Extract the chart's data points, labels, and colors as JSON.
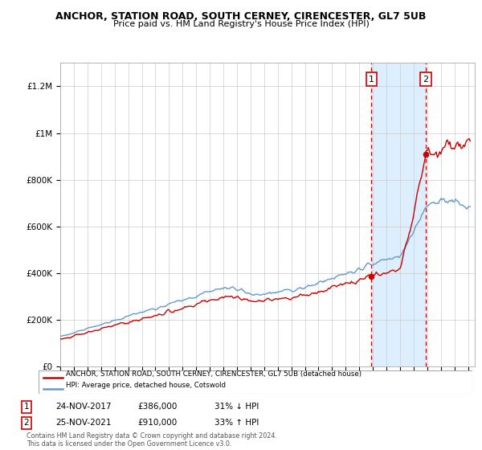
{
  "title": "ANCHOR, STATION ROAD, SOUTH CERNEY, CIRENCESTER, GL7 5UB",
  "subtitle": "Price paid vs. HM Land Registry's House Price Index (HPI)",
  "ylabel_ticks": [
    "£0",
    "£200K",
    "£400K",
    "£600K",
    "£800K",
    "£1M",
    "£1.2M"
  ],
  "ytick_values": [
    0,
    200000,
    400000,
    600000,
    800000,
    1000000,
    1200000
  ],
  "ylim": [
    0,
    1300000
  ],
  "xlim_start": 1995.0,
  "xlim_end": 2025.5,
  "transaction1": {
    "date": "24-NOV-2017",
    "year": 2017.9,
    "price": 386000,
    "pct": "31% ↓ HPI",
    "label": "1"
  },
  "transaction2": {
    "date": "25-NOV-2021",
    "year": 2021.9,
    "price": 910000,
    "pct": "33% ↑ HPI",
    "label": "2"
  },
  "red_line_color": "#cc0000",
  "blue_line_color": "#6699cc",
  "shaded_region_color": "#ddeeff",
  "dashed_line_color": "#cc0000",
  "legend_red_label": "ANCHOR, STATION ROAD, SOUTH CERNEY, CIRENCESTER, GL7 5UB (detached house)",
  "legend_blue_label": "HPI: Average price, detached house, Cotswold",
  "footer": "Contains HM Land Registry data © Crown copyright and database right 2024.\nThis data is licensed under the Open Government Licence v3.0.",
  "table_rows": [
    {
      "num": "1",
      "date": "24-NOV-2017",
      "price": "£386,000",
      "pct": "31% ↓ HPI"
    },
    {
      "num": "2",
      "date": "25-NOV-2021",
      "price": "£910,000",
      "pct": "33% ↑ HPI"
    }
  ]
}
